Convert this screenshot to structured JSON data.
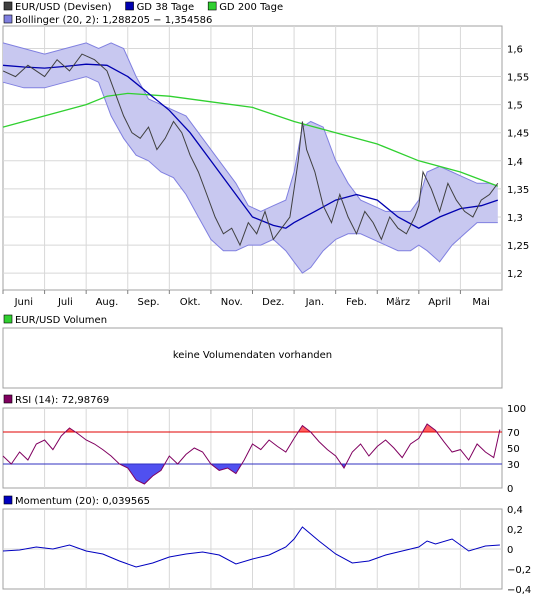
{
  "colors": {
    "price": "#404040",
    "gd38": "#0000b0",
    "gd200": "#30d030",
    "band_fill": "#c8c8f0",
    "band_line": "#8080e0",
    "grid": "#d8d8d8",
    "rsi": "#800060",
    "rsi_upper": "#e00000",
    "rsi_lower": "#3030c0",
    "rsi_fill_high": "#ff6060",
    "rsi_fill_low": "#5050f0",
    "momentum": "#0000c0",
    "volumen_swatch": "#30d030",
    "rsi_swatch": "#800060"
  },
  "chart_data": [
    {
      "type": "line",
      "panel": "price",
      "legend": [
        {
          "name": "EUR/USD (Devisen)",
          "color": "#404040"
        },
        {
          "name": "GD 38 Tage",
          "color": "#0000b0"
        },
        {
          "name": "GD 200 Tage",
          "color": "#30d030"
        },
        {
          "name": "Bollinger (20, 2): 1,288205 − 1,354586",
          "color": "#8080e0"
        }
      ],
      "x_labels": [
        "Juni",
        "Juli",
        "Aug.",
        "Sep.",
        "Okt.",
        "Nov.",
        "Dez.",
        "Jan.",
        "Feb.",
        "März",
        "April",
        "Mai"
      ],
      "x_positions": [
        0.5,
        1.5,
        2.5,
        3.5,
        4.5,
        5.5,
        6.5,
        7.5,
        8.5,
        9.5,
        10.5,
        11.5
      ],
      "x_range": [
        0,
        12
      ],
      "ylim": [
        1.17,
        1.64
      ],
      "y_ticks": [
        1.2,
        1.25,
        1.3,
        1.35,
        1.4,
        1.45,
        1.5,
        1.55,
        1.6
      ],
      "y_tick_labels": [
        "1,2",
        "1,25",
        "1,3",
        "1,35",
        "1,4",
        "1,45",
        "1,5",
        "1,55",
        "1,6"
      ],
      "series": [
        {
          "name": "EUR/USD (Devisen)",
          "x": [
            0,
            0.3,
            0.6,
            1.0,
            1.3,
            1.6,
            1.9,
            2.2,
            2.5,
            2.7,
            2.9,
            3.1,
            3.3,
            3.5,
            3.7,
            3.9,
            4.1,
            4.3,
            4.5,
            4.7,
            4.9,
            5.1,
            5.3,
            5.5,
            5.7,
            5.9,
            6.1,
            6.3,
            6.5,
            6.7,
            6.9,
            7.0,
            7.1,
            7.2,
            7.3,
            7.5,
            7.7,
            7.9,
            8.1,
            8.3,
            8.5,
            8.7,
            8.9,
            9.1,
            9.3,
            9.5,
            9.7,
            9.9,
            10.0,
            10.1,
            10.3,
            10.5,
            10.7,
            10.9,
            11.1,
            11.3,
            11.5,
            11.7,
            11.9
          ],
          "values": [
            1.56,
            1.55,
            1.57,
            1.55,
            1.58,
            1.56,
            1.59,
            1.58,
            1.56,
            1.52,
            1.48,
            1.45,
            1.44,
            1.46,
            1.42,
            1.44,
            1.47,
            1.45,
            1.41,
            1.38,
            1.34,
            1.3,
            1.27,
            1.28,
            1.25,
            1.29,
            1.27,
            1.31,
            1.26,
            1.28,
            1.3,
            1.35,
            1.4,
            1.47,
            1.42,
            1.38,
            1.32,
            1.29,
            1.34,
            1.3,
            1.27,
            1.31,
            1.29,
            1.26,
            1.3,
            1.28,
            1.27,
            1.3,
            1.32,
            1.38,
            1.35,
            1.31,
            1.36,
            1.33,
            1.31,
            1.3,
            1.33,
            1.34,
            1.36
          ]
        },
        {
          "name": "GD 38 Tage",
          "x": [
            0,
            0.5,
            1.0,
            1.5,
            2.0,
            2.5,
            3.0,
            3.5,
            4.0,
            4.5,
            5.0,
            5.5,
            6.0,
            6.5,
            6.8,
            7.0,
            7.5,
            8.0,
            8.5,
            9.0,
            9.5,
            10.0,
            10.5,
            11.0,
            11.5,
            11.9
          ],
          "values": [
            1.57,
            1.567,
            1.565,
            1.568,
            1.572,
            1.57,
            1.55,
            1.52,
            1.49,
            1.45,
            1.4,
            1.35,
            1.3,
            1.285,
            1.28,
            1.29,
            1.31,
            1.33,
            1.34,
            1.33,
            1.3,
            1.28,
            1.3,
            1.315,
            1.32,
            1.33
          ]
        },
        {
          "name": "GD 200 Tage",
          "x": [
            0,
            1.0,
            2.0,
            2.5,
            3.0,
            4.0,
            5.0,
            6.0,
            7.0,
            7.5,
            8.0,
            9.0,
            10.0,
            11.0,
            11.9
          ],
          "values": [
            1.46,
            1.48,
            1.5,
            1.515,
            1.52,
            1.515,
            1.505,
            1.495,
            1.47,
            1.46,
            1.45,
            1.43,
            1.4,
            1.38,
            1.355
          ]
        }
      ],
      "band": {
        "name": "Bollinger (20, 2)",
        "x": [
          0,
          0.5,
          1.0,
          1.5,
          2.0,
          2.3,
          2.6,
          2.9,
          3.2,
          3.5,
          3.8,
          4.1,
          4.4,
          4.7,
          5.0,
          5.3,
          5.6,
          5.9,
          6.2,
          6.5,
          6.8,
          7.0,
          7.2,
          7.4,
          7.7,
          8.0,
          8.3,
          8.6,
          8.9,
          9.2,
          9.5,
          9.8,
          10.0,
          10.2,
          10.5,
          10.8,
          11.1,
          11.4,
          11.7,
          11.9
        ],
        "upper": [
          1.61,
          1.6,
          1.59,
          1.6,
          1.61,
          1.6,
          1.61,
          1.6,
          1.55,
          1.51,
          1.5,
          1.49,
          1.48,
          1.45,
          1.42,
          1.39,
          1.36,
          1.32,
          1.31,
          1.32,
          1.33,
          1.38,
          1.46,
          1.47,
          1.46,
          1.4,
          1.36,
          1.33,
          1.32,
          1.31,
          1.31,
          1.31,
          1.33,
          1.38,
          1.39,
          1.38,
          1.37,
          1.36,
          1.36,
          1.355
        ],
        "lower": [
          1.54,
          1.53,
          1.53,
          1.54,
          1.55,
          1.54,
          1.48,
          1.44,
          1.41,
          1.4,
          1.38,
          1.37,
          1.34,
          1.3,
          1.26,
          1.24,
          1.24,
          1.25,
          1.25,
          1.26,
          1.24,
          1.22,
          1.2,
          1.21,
          1.24,
          1.26,
          1.27,
          1.27,
          1.26,
          1.25,
          1.24,
          1.24,
          1.25,
          1.24,
          1.22,
          1.25,
          1.27,
          1.29,
          1.29,
          1.29
        ]
      }
    },
    {
      "type": "bar",
      "panel": "volume",
      "legend": [
        {
          "name": "EUR/USD Volumen",
          "color": "#30d030"
        }
      ],
      "message": "keine Volumendaten vorhanden"
    },
    {
      "type": "line",
      "panel": "rsi",
      "legend": [
        {
          "name": "RSI (14): 72,98769",
          "color": "#800060"
        }
      ],
      "ylim": [
        0,
        100
      ],
      "y_ticks": [
        0,
        30,
        50,
        70,
        100
      ],
      "y_tick_labels": [
        "0",
        "30",
        "50",
        "70",
        "100"
      ],
      "upper_level": 70,
      "lower_level": 30,
      "x": [
        0,
        0.2,
        0.4,
        0.6,
        0.8,
        1.0,
        1.2,
        1.4,
        1.6,
        1.8,
        2.0,
        2.2,
        2.4,
        2.6,
        2.8,
        3.0,
        3.2,
        3.4,
        3.6,
        3.8,
        4.0,
        4.2,
        4.4,
        4.6,
        4.8,
        5.0,
        5.2,
        5.4,
        5.6,
        5.8,
        6.0,
        6.2,
        6.4,
        6.6,
        6.8,
        7.0,
        7.2,
        7.4,
        7.6,
        7.8,
        8.0,
        8.2,
        8.4,
        8.6,
        8.8,
        9.0,
        9.2,
        9.4,
        9.6,
        9.8,
        10.0,
        10.2,
        10.4,
        10.6,
        10.8,
        11.0,
        11.2,
        11.4,
        11.6,
        11.8,
        11.95
      ],
      "values": [
        40,
        30,
        45,
        35,
        55,
        60,
        48,
        65,
        75,
        68,
        60,
        55,
        48,
        40,
        30,
        25,
        10,
        5,
        15,
        22,
        40,
        30,
        42,
        50,
        45,
        30,
        22,
        25,
        18,
        35,
        55,
        48,
        60,
        52,
        45,
        62,
        78,
        70,
        58,
        48,
        40,
        25,
        45,
        55,
        40,
        52,
        60,
        50,
        38,
        55,
        62,
        80,
        72,
        58,
        45,
        48,
        35,
        55,
        45,
        38,
        73
      ]
    },
    {
      "type": "line",
      "panel": "momentum",
      "legend": [
        {
          "name": "Momentum (20): 0,039565",
          "color": "#0000c0"
        }
      ],
      "ylim": [
        -0.4,
        0.4
      ],
      "y_ticks": [
        -0.4,
        -0.2,
        0,
        0.2,
        0.4
      ],
      "y_tick_labels": [
        "−0,4",
        "−0,2",
        "0",
        "0,2",
        "0,4"
      ],
      "x": [
        0,
        0.4,
        0.8,
        1.2,
        1.6,
        2.0,
        2.4,
        2.8,
        3.2,
        3.6,
        4.0,
        4.4,
        4.8,
        5.2,
        5.6,
        6.0,
        6.4,
        6.8,
        7.0,
        7.2,
        7.4,
        7.6,
        8.0,
        8.4,
        8.8,
        9.2,
        9.6,
        10.0,
        10.2,
        10.4,
        10.8,
        11.2,
        11.6,
        11.95
      ],
      "values": [
        -0.02,
        -0.01,
        0.02,
        0.0,
        0.04,
        -0.02,
        -0.05,
        -0.12,
        -0.18,
        -0.14,
        -0.08,
        -0.05,
        -0.03,
        -0.06,
        -0.15,
        -0.1,
        -0.06,
        0.02,
        0.1,
        0.22,
        0.15,
        0.08,
        -0.05,
        -0.14,
        -0.12,
        -0.06,
        -0.02,
        0.02,
        0.08,
        0.05,
        0.1,
        -0.02,
        0.03,
        0.04
      ]
    }
  ]
}
